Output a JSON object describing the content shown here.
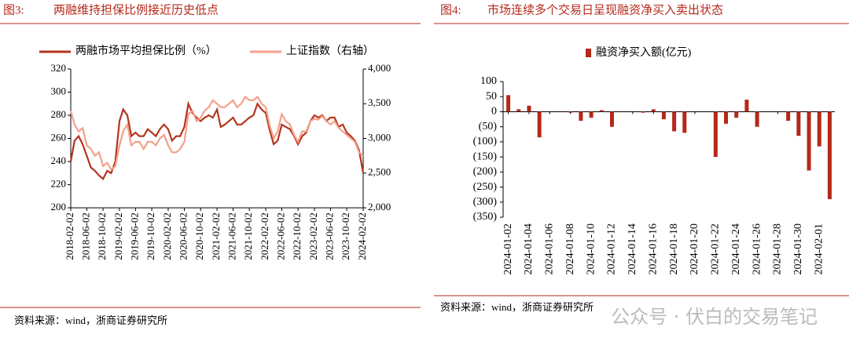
{
  "chart_data": [
    {
      "type": "line",
      "figure_label": "图3:",
      "title": "两融维持担保比例接近历史低点",
      "source": "资料来源：wind，浙商证券研究所",
      "x": [
        "2018-02-02",
        "2018-03-02",
        "2018-04-02",
        "2018-05-02",
        "2018-06-02",
        "2018-07-02",
        "2018-08-02",
        "2018-09-02",
        "2018-10-02",
        "2018-11-02",
        "2018-12-02",
        "2019-01-02",
        "2019-02-02",
        "2019-03-02",
        "2019-04-02",
        "2019-05-02",
        "2019-06-02",
        "2019-07-02",
        "2019-08-02",
        "2019-09-02",
        "2019-10-02",
        "2019-11-02",
        "2019-12-02",
        "2020-01-02",
        "2020-02-02",
        "2020-03-02",
        "2020-04-02",
        "2020-05-02",
        "2020-06-02",
        "2020-07-02",
        "2020-08-02",
        "2020-09-02",
        "2020-10-02",
        "2020-11-02",
        "2020-12-02",
        "2021-01-02",
        "2021-02-02",
        "2021-03-02",
        "2021-04-02",
        "2021-05-02",
        "2021-06-02",
        "2021-07-02",
        "2021-08-02",
        "2021-09-02",
        "2021-10-02",
        "2021-11-02",
        "2021-12-02",
        "2022-01-02",
        "2022-02-02",
        "2022-03-02",
        "2022-04-02",
        "2022-05-02",
        "2022-06-02",
        "2022-07-02",
        "2022-08-02",
        "2022-09-02",
        "2022-10-02",
        "2022-11-02",
        "2022-12-02",
        "2023-01-02",
        "2023-02-02",
        "2023-03-02",
        "2023-04-02",
        "2023-05-02",
        "2023-06-02",
        "2023-07-02",
        "2023-08-02",
        "2023-09-02",
        "2023-10-02",
        "2023-11-02",
        "2023-12-02",
        "2024-01-02",
        "2024-02-02"
      ],
      "series": [
        {
          "name": "两融市场平均担保比例（%）",
          "color": "#b5341e",
          "axis": "y",
          "values": [
            240,
            258,
            262,
            255,
            245,
            235,
            232,
            228,
            225,
            232,
            230,
            240,
            275,
            285,
            280,
            262,
            265,
            262,
            262,
            268,
            265,
            262,
            268,
            272,
            268,
            258,
            262,
            262,
            270,
            290,
            282,
            278,
            275,
            278,
            280,
            278,
            285,
            270,
            272,
            275,
            278,
            272,
            272,
            275,
            278,
            280,
            290,
            285,
            282,
            268,
            255,
            258,
            272,
            270,
            268,
            262,
            255,
            262,
            265,
            275,
            280,
            278,
            280,
            275,
            278,
            278,
            270,
            272,
            265,
            262,
            258,
            250,
            230
          ]
        },
        {
          "name": "上证指数（右轴）",
          "color": "#f4a08a",
          "axis": "y2",
          "values": [
            3400,
            3200,
            3100,
            3150,
            2900,
            2850,
            2750,
            2800,
            2600,
            2650,
            2550,
            2600,
            2900,
            3100,
            3200,
            2900,
            2950,
            2950,
            2850,
            2950,
            2950,
            2900,
            3000,
            3050,
            2900,
            2800,
            2800,
            2850,
            2950,
            3350,
            3400,
            3250,
            3300,
            3400,
            3450,
            3550,
            3500,
            3450,
            3450,
            3500,
            3550,
            3450,
            3500,
            3600,
            3550,
            3550,
            3600,
            3500,
            3450,
            3200,
            3000,
            3100,
            3350,
            3250,
            3200,
            3050,
            2950,
            3100,
            3100,
            3250,
            3280,
            3270,
            3320,
            3250,
            3200,
            3250,
            3150,
            3100,
            3050,
            3000,
            2950,
            2800,
            2750
          ]
        }
      ],
      "xlim": [
        "2018-02-02",
        "2024-02-02"
      ],
      "xticks": [
        "2018-02-02",
        "2018-06-02",
        "2018-10-02",
        "2019-02-02",
        "2019-06-02",
        "2019-10-02",
        "2020-02-02",
        "2020-06-02",
        "2020-10-02",
        "2021-02-02",
        "2021-06-02",
        "2021-10-02",
        "2022-02-02",
        "2022-06-02",
        "2022-10-02",
        "2023-02-02",
        "2023-06-02",
        "2023-10-02",
        "2024-02-02"
      ],
      "ylim": [
        200,
        320
      ],
      "yticks": [
        200,
        220,
        240,
        260,
        280,
        300,
        320
      ],
      "y2lim": [
        2000,
        4000
      ],
      "y2ticks": [
        {
          "value": 2000,
          "label": "2,000"
        },
        {
          "value": 2500,
          "label": "2,500"
        },
        {
          "value": 3000,
          "label": "3,000"
        },
        {
          "value": 3500,
          "label": "3,500"
        },
        {
          "value": 4000,
          "label": "4,000"
        }
      ],
      "legend": "top"
    },
    {
      "type": "bar",
      "figure_label": "图4:",
      "title": "市场连续多个交易日呈现融资净买入卖出状态",
      "source": "资料来源：wind，浙商证券研究所",
      "categories": [
        "2024-01-02",
        null,
        "2024-01-04",
        null,
        "2024-01-06",
        null,
        "2024-01-08",
        null,
        "2024-01-10",
        null,
        "2024-01-12",
        null,
        "2024-01-14",
        null,
        "2024-01-16",
        null,
        "2024-01-18",
        null,
        "2024-01-20",
        null,
        "2024-01-22",
        null,
        "2024-01-24",
        null,
        "2024-01-26",
        null,
        "2024-01-28",
        null,
        "2024-01-30",
        null,
        "2024-02-01",
        null
      ],
      "series": [
        {
          "name": "融资净买入额(亿元)",
          "color": "#b5281a",
          "values": [
            55,
            8,
            20,
            -85,
            null,
            null,
            -3,
            -30,
            -20,
            5,
            -50,
            null,
            null,
            -3,
            8,
            -25,
            -65,
            -70,
            null,
            null,
            -150,
            -40,
            -20,
            40,
            -50,
            null,
            null,
            -30,
            -80,
            -195,
            -115,
            -290
          ]
        }
      ],
      "ylim": [
        -350,
        100
      ],
      "yticks": [
        100,
        50,
        0,
        {
          "value": -50,
          "label": "(50)"
        },
        {
          "value": -100,
          "label": "(100)"
        },
        {
          "value": -150,
          "label": "(150)"
        },
        {
          "value": -200,
          "label": "(200)"
        },
        {
          "value": -250,
          "label": "(250)"
        },
        {
          "value": -300,
          "label": "(300)"
        },
        {
          "value": -350,
          "label": "(350)"
        }
      ],
      "legend": "top"
    }
  ],
  "watermark": "公众号 · 伏白的交易笔记"
}
